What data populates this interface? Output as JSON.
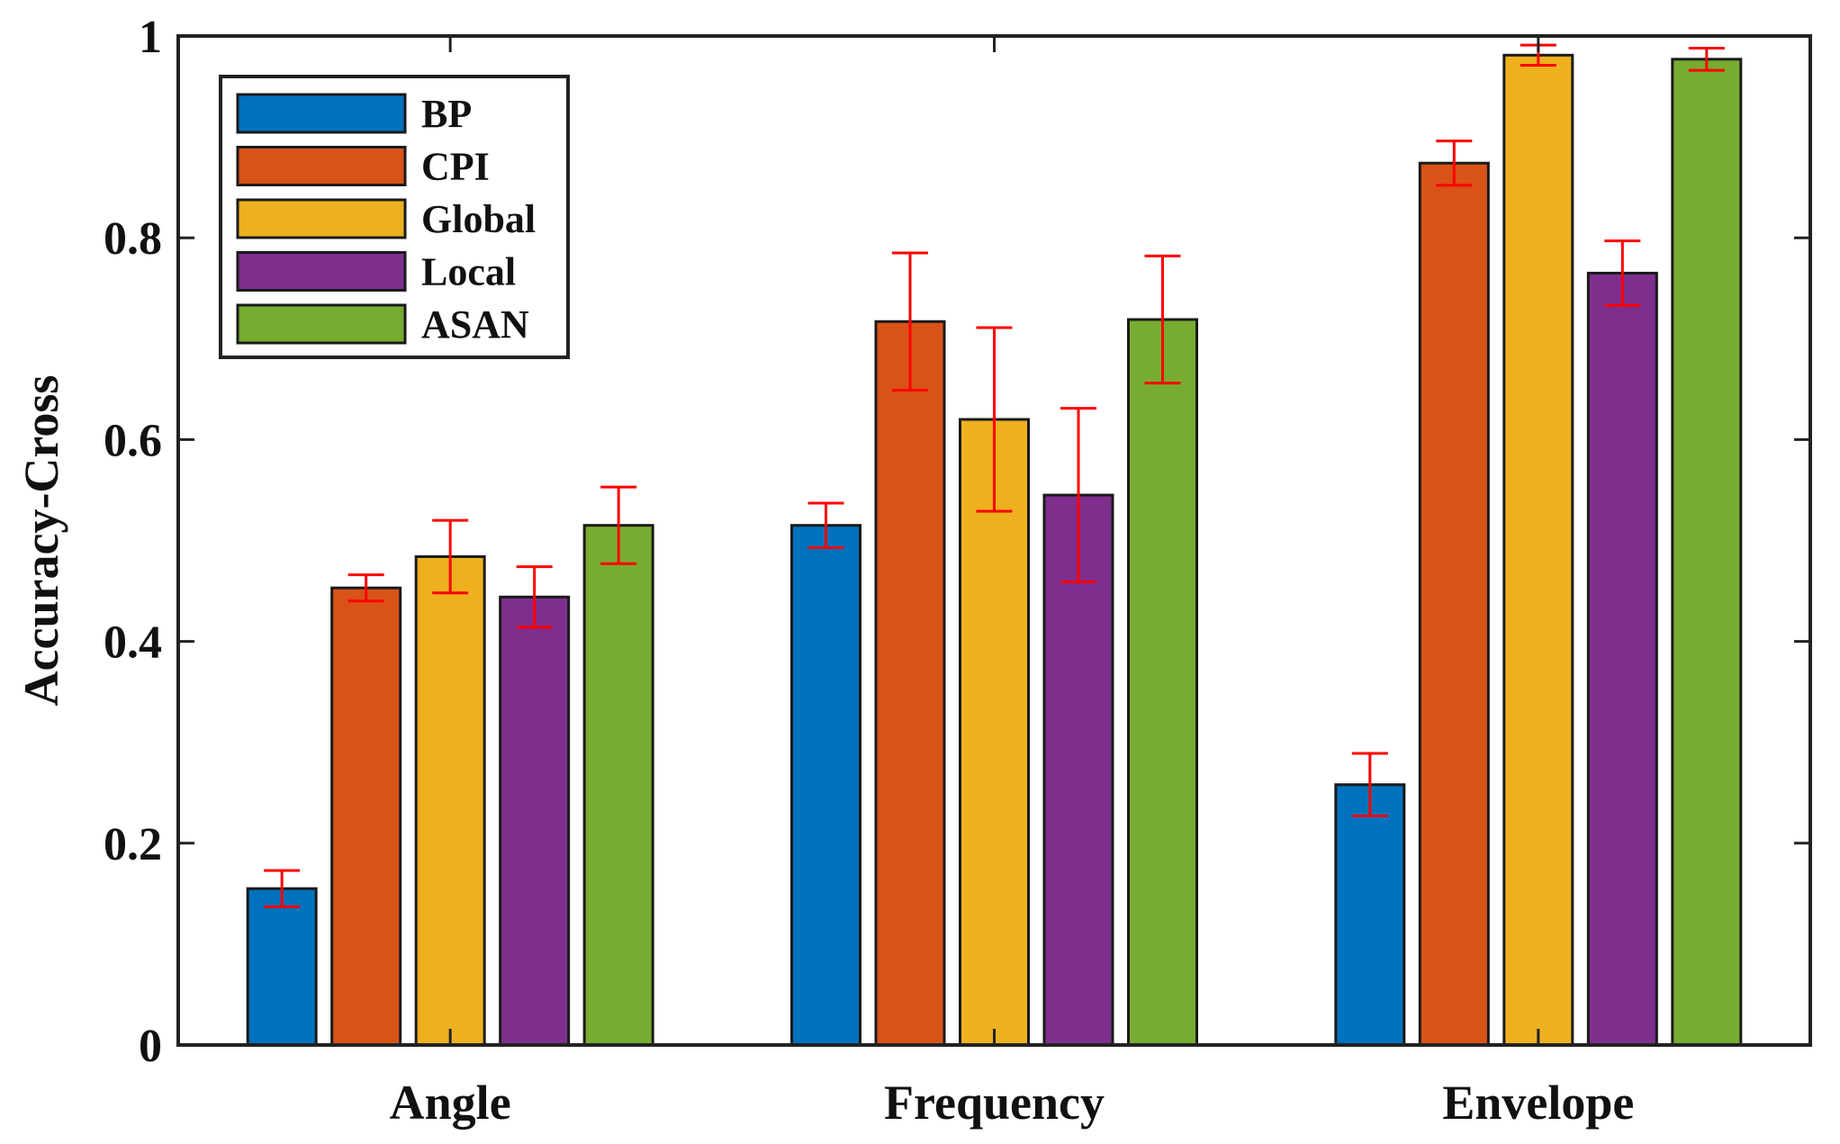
{
  "chart_data": {
    "type": "bar",
    "ylabel": "Accuracy-Cross",
    "xlabel": "",
    "ylim": [
      0,
      1
    ],
    "yticks": [
      0,
      0.2,
      0.4,
      0.6,
      0.8,
      1
    ],
    "ytick_labels": [
      "0",
      "0.2",
      "0.4",
      "0.6",
      "0.8",
      "1"
    ],
    "grid": false,
    "legend_position": "top-left",
    "categories": [
      "Angle",
      "Frequency",
      "Envelope"
    ],
    "error_bar_color": "#ff0000",
    "series": [
      {
        "name": "BP",
        "color": "#0072bd",
        "values": [
          0.155,
          0.515,
          0.258
        ],
        "errors": [
          0.018,
          0.022,
          0.031
        ]
      },
      {
        "name": "CPI",
        "color": "#d95319",
        "values": [
          0.453,
          0.717,
          0.874
        ],
        "errors": [
          0.013,
          0.068,
          0.022
        ]
      },
      {
        "name": "Global",
        "color": "#edb120",
        "values": [
          0.484,
          0.62,
          0.981
        ],
        "errors": [
          0.036,
          0.091,
          0.01
        ]
      },
      {
        "name": "Local",
        "color": "#7e2f8e",
        "values": [
          0.444,
          0.545,
          0.765
        ],
        "errors": [
          0.03,
          0.086,
          0.032
        ]
      },
      {
        "name": "ASAN",
        "color": "#77ac30",
        "values": [
          0.515,
          0.719,
          0.977
        ],
        "errors": [
          0.038,
          0.063,
          0.011
        ]
      }
    ]
  }
}
